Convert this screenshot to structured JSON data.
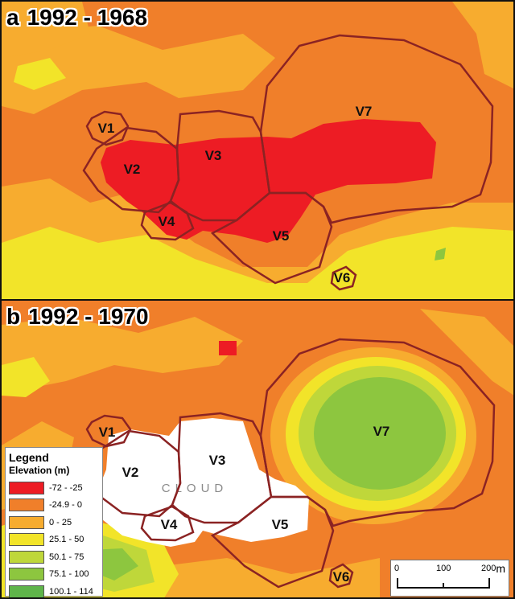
{
  "panels": {
    "a": {
      "letter": "a",
      "period": "1992 - 1968",
      "zones": [
        "V1",
        "V2",
        "V3",
        "V4",
        "V5",
        "V6",
        "V7"
      ]
    },
    "b": {
      "letter": "b",
      "period": "1992 - 1970",
      "zones": [
        "V1",
        "V2",
        "V3",
        "V4",
        "V5",
        "V6",
        "V7"
      ],
      "cloud_label": "CLOUD"
    }
  },
  "legend": {
    "title": "Legend",
    "subtitle": "Elevation (m)",
    "classes": [
      {
        "label": "-72 - -25",
        "color": "#ed1c24"
      },
      {
        "label": "-24.9 - 0",
        "color": "#f07f2a"
      },
      {
        "label": "0 - 25",
        "color": "#f7ac2f"
      },
      {
        "label": "25.1 - 50",
        "color": "#f2e429"
      },
      {
        "label": "50.1 - 75",
        "color": "#bfd73a"
      },
      {
        "label": "75.1 - 100",
        "color": "#8dc63f"
      },
      {
        "label": "100.1 - 114",
        "color": "#5fb54a"
      }
    ]
  },
  "scalebar": {
    "ticks": [
      "0",
      "100",
      "200"
    ],
    "unit": "m"
  },
  "colors": {
    "boundary": "#8b2323",
    "cloud": "#ffffff"
  }
}
